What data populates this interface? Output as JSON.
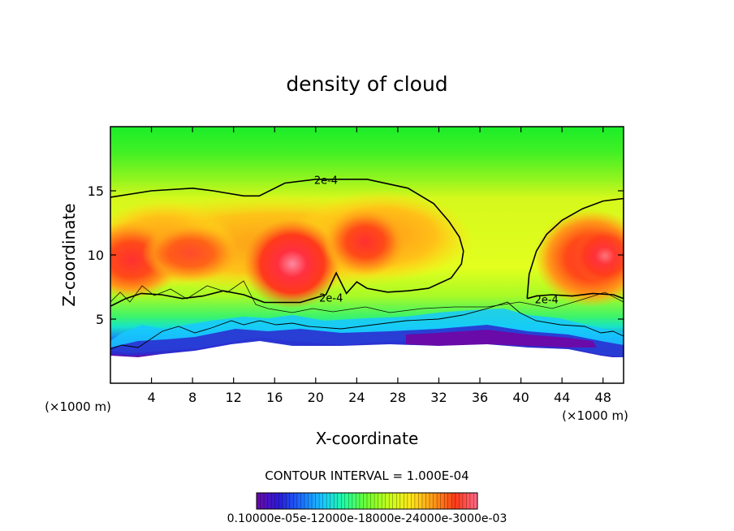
{
  "chart_data": {
    "type": "heatmap",
    "title": "density of cloud",
    "xlabel": "X-coordinate",
    "ylabel": "Z-coordinate",
    "x_unit_left": "(×1000 m)",
    "x_unit_right": "(×1000 m)",
    "xlim": [
      0,
      50
    ],
    "ylim": [
      0,
      20
    ],
    "x_ticks": [
      4,
      8,
      12,
      16,
      20,
      24,
      28,
      32,
      36,
      40,
      44,
      48
    ],
    "y_ticks": [
      5,
      10,
      15
    ],
    "grid": false,
    "contour_interval_text": "CONTOUR INTERVAL = 1.000E-04",
    "contour_labels": [
      {
        "text": "2e-4",
        "x": 21.0,
        "y": 15.8
      },
      {
        "text": "2e-4",
        "x": 21.5,
        "y": 6.6
      },
      {
        "text": "2e-4",
        "x": 42.5,
        "y": 6.5
      }
    ],
    "contour_2e4_upper_x": [
      0,
      4,
      8,
      10,
      13,
      14.5,
      17,
      20,
      25,
      29,
      31.5,
      33,
      34,
      34.4,
      34.2,
      33.2,
      31,
      29,
      27,
      25,
      24,
      23,
      22,
      21,
      18.5,
      15,
      13,
      11,
      9,
      7,
      5,
      3,
      1.5,
      0
    ],
    "contour_2e4_upper_y": [
      14.5,
      15.0,
      15.2,
      15.0,
      14.6,
      14.6,
      15.6,
      15.9,
      15.9,
      15.2,
      14.0,
      12.6,
      11.4,
      10.3,
      9.3,
      8.2,
      7.4,
      7.2,
      7.1,
      7.4,
      7.9,
      7.0,
      8.6,
      6.9,
      6.3,
      6.3,
      6.9,
      7.2,
      6.8,
      6.6,
      6.9,
      7.0,
      6.6,
      6.0
    ],
    "contour_2e4_right_x": [
      40.6,
      40.8,
      41.5,
      42.5,
      44,
      46,
      48,
      50,
      50,
      49,
      47,
      45,
      43,
      41.5,
      40.6
    ],
    "contour_2e4_right_y": [
      6.6,
      8.5,
      10.3,
      11.6,
      12.7,
      13.6,
      14.2,
      14.4,
      6.6,
      6.9,
      7.0,
      6.8,
      6.9,
      6.8,
      6.6
    ],
    "field_centers": [
      {
        "x": 2.0,
        "y": 10.6,
        "value": 0.00031
      },
      {
        "x": 18.5,
        "y": 9.8,
        "value": 0.00036
      },
      {
        "x": 25.5,
        "y": 10.8,
        "value": 0.00031
      },
      {
        "x": 47.5,
        "y": 10.6,
        "value": 0.00033
      },
      {
        "x": 16.0,
        "y": 13.0,
        "value": 0.00028
      },
      {
        "x": 36.0,
        "y": 5.5,
        "value": 0.00012
      },
      {
        "x": 36.0,
        "y": 3.8,
        "value": 0.0001
      }
    ],
    "colorbar": {
      "min": 0.0001,
      "max": 0.0003,
      "tick_label_text": "0.10000e-05e-12000e-18000e-24000e-3000e-03",
      "colors": [
        "#6a0aa8",
        "#2a1ad8",
        "#1a6cff",
        "#18c8ff",
        "#22ff9c",
        "#6eff2e",
        "#c8ff1c",
        "#ffe41a",
        "#ff9a18",
        "#ff4a18",
        "#ff2020",
        "#ff6a8a"
      ]
    }
  }
}
